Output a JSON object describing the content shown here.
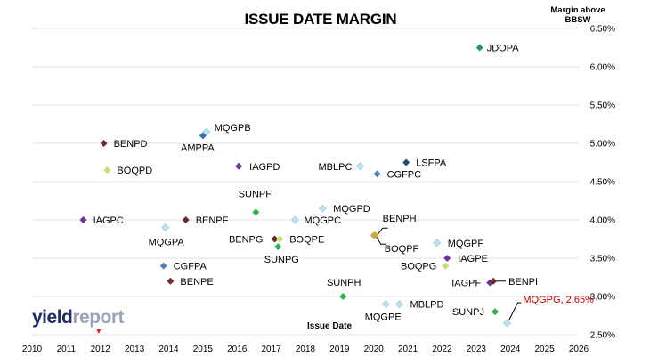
{
  "chart_data": {
    "type": "scatter",
    "title": "ISSUE DATE MARGIN",
    "ylabel": "Margin above BBSW",
    "xlabel": "Issue Date",
    "xlim": [
      2010,
      2026
    ],
    "ylim": [
      2.5,
      6.5
    ],
    "x_ticks": [
      "2010",
      "2011",
      "2012",
      "2013",
      "2014",
      "2015",
      "2016",
      "2017",
      "2018",
      "2019",
      "2020",
      "2021",
      "2022",
      "2023",
      "2024",
      "2025",
      "2026"
    ],
    "y_ticks": [
      "2.50%",
      "3.00%",
      "3.50%",
      "4.00%",
      "4.50%",
      "5.00%",
      "5.50%",
      "6.00%",
      "6.50%"
    ],
    "y_axis_position": "right",
    "grid": "horizontal",
    "points": [
      {
        "name": "JDOPA",
        "x": 2023.1,
        "y": 6.25,
        "color": "#1a9a6e"
      },
      {
        "name": "BENPD",
        "x": 2012.1,
        "y": 5.0,
        "color": "#6b2a2a"
      },
      {
        "name": "MQGPB",
        "x": 2015.1,
        "y": 5.15,
        "color": "#bfe3f2"
      },
      {
        "name": "AMPPA",
        "x": 2015.0,
        "y": 5.1,
        "color": "#2e75b6"
      },
      {
        "name": "IAGPD",
        "x": 2016.05,
        "y": 4.7,
        "color": "#7030a0"
      },
      {
        "name": "BOQPD",
        "x": 2012.2,
        "y": 4.65,
        "color": "#c5e06e"
      },
      {
        "name": "MBLPC",
        "x": 2019.6,
        "y": 4.7,
        "color": "#bfe3f2"
      },
      {
        "name": "LSFPA",
        "x": 2020.95,
        "y": 4.75,
        "color": "#1f4e79"
      },
      {
        "name": "CGFPC",
        "x": 2020.1,
        "y": 4.6,
        "color": "#4f81bd"
      },
      {
        "name": "SUNPF",
        "x": 2016.55,
        "y": 4.1,
        "color": "#2db34a"
      },
      {
        "name": "MQGPD",
        "x": 2018.5,
        "y": 4.15,
        "color": "#bfe3f2"
      },
      {
        "name": "MQGPC",
        "x": 2017.7,
        "y": 4.0,
        "color": "#bfe3f2"
      },
      {
        "name": "IAGPC",
        "x": 2011.5,
        "y": 4.0,
        "color": "#7030a0"
      },
      {
        "name": "BENPF",
        "x": 2014.5,
        "y": 4.0,
        "color": "#6b2a2a"
      },
      {
        "name": "MQGPA",
        "x": 2013.9,
        "y": 3.9,
        "color": "#bfe3f2"
      },
      {
        "name": "BENPH",
        "x": 2020.05,
        "y": 3.8,
        "color": "#c6a84b"
      },
      {
        "name": "BENPG",
        "x": 2017.1,
        "y": 3.75,
        "color": "#6b2a2a"
      },
      {
        "name": "BOQPE",
        "x": 2017.25,
        "y": 3.75,
        "color": "#c5e06e"
      },
      {
        "name": "SUNPG",
        "x": 2017.2,
        "y": 3.65,
        "color": "#2db34a"
      },
      {
        "name": "MQGPF",
        "x": 2021.85,
        "y": 3.7,
        "color": "#bfe3f2"
      },
      {
        "name": "BOQPF",
        "x": 2020.0,
        "y": 3.8,
        "color": "#c6a84b"
      },
      {
        "name": "IAGPE",
        "x": 2022.15,
        "y": 3.5,
        "color": "#7030a0"
      },
      {
        "name": "BOQPG",
        "x": 2022.1,
        "y": 3.4,
        "color": "#c5e06e"
      },
      {
        "name": "CGFPA",
        "x": 2013.85,
        "y": 3.4,
        "color": "#4f81bd"
      },
      {
        "name": "BENPE",
        "x": 2014.05,
        "y": 3.2,
        "color": "#6b2a2a"
      },
      {
        "name": "IAGPF",
        "x": 2023.4,
        "y": 3.18,
        "color": "#7030a0"
      },
      {
        "name": "BENPI",
        "x": 2023.5,
        "y": 3.2,
        "color": "#6b2a2a"
      },
      {
        "name": "SUNPH",
        "x": 2019.1,
        "y": 3.0,
        "color": "#2db34a"
      },
      {
        "name": "MQGPE",
        "x": 2020.35,
        "y": 2.9,
        "color": "#bfe3f2"
      },
      {
        "name": "MBLPD",
        "x": 2020.75,
        "y": 2.9,
        "color": "#bfe3f2"
      },
      {
        "name": "SUNPJ",
        "x": 2023.55,
        "y": 2.8,
        "color": "#2db34a"
      },
      {
        "name": "MQGPG, 2.65%",
        "x": 2023.9,
        "y": 2.65,
        "color": "#bfe3f2",
        "label_color": "#c00000"
      }
    ]
  },
  "branding": {
    "logo_part1": "yield",
    "logo_part2": "report"
  }
}
